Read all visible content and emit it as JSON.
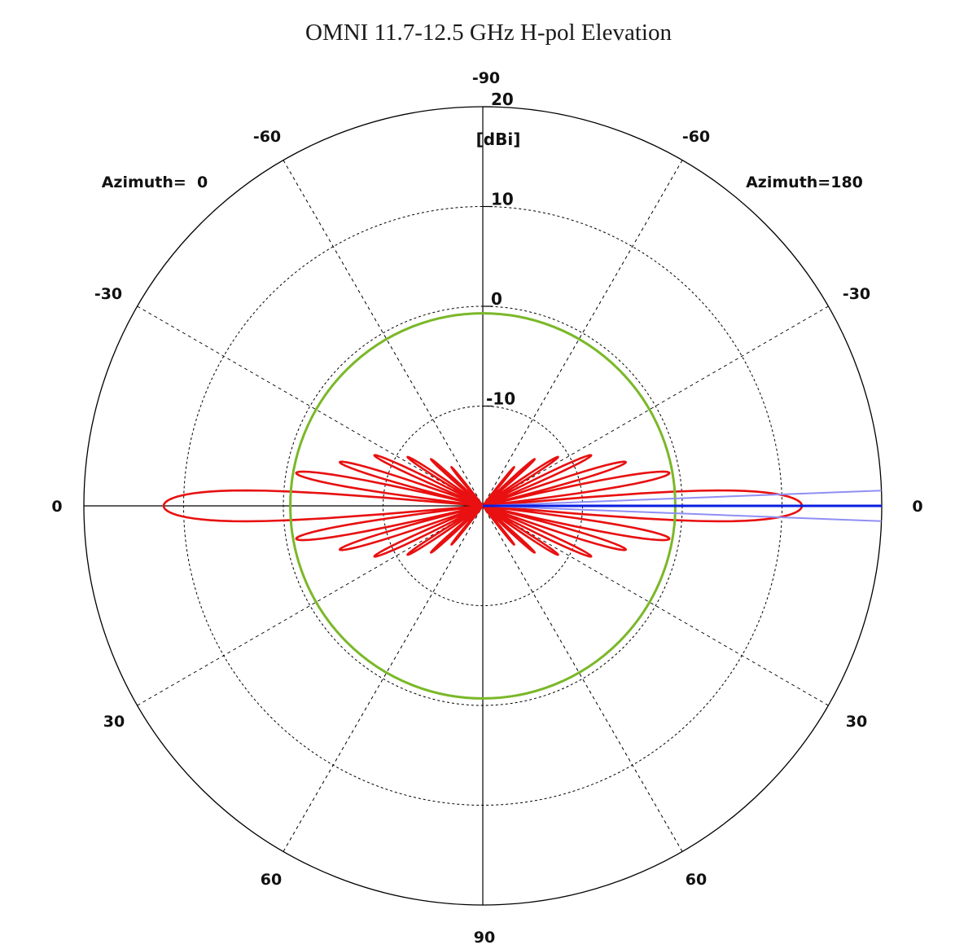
{
  "chart_data": {
    "type": "polar",
    "title": "OMNI 11.7-12.5 GHz H-pol Elevation",
    "unit_label": "[dBi]",
    "radial_ticks": [
      -10,
      0,
      10,
      20
    ],
    "radial_range": [
      -20,
      20
    ],
    "angle_labels": {
      "top": "-90",
      "bottom": "90",
      "left": "0",
      "right": "0",
      "upper_left": "-60",
      "upper_right": "-60",
      "mid_upper_left": "-30",
      "mid_upper_right": "-30",
      "lower_left_30": "30",
      "lower_right_30": "30",
      "lower_left_60": "60",
      "lower_right_60": "60"
    },
    "side_labels": {
      "left": "Azimuth=  0",
      "right": "Azimuth=180"
    },
    "series": [
      {
        "color": "#e81010",
        "description_lobes_dbi": {
          "main_lobe_peak": 12,
          "main_lobe_half_width_deg": 5,
          "side_lobes": [
            {
              "elev_deg": 10,
              "gain_dbi": -1
            },
            {
              "elev_deg": 17,
              "gain_dbi": -5
            },
            {
              "elev_deg": 25,
              "gain_dbi": -8
            },
            {
              "elev_deg": 33,
              "gain_dbi": -11
            },
            {
              "elev_deg": 42,
              "gain_dbi": -13
            },
            {
              "elev_deg": 51,
              "gain_dbi": -15
            }
          ]
        }
      },
      {
        "color": "#7ab828",
        "constant_gain_dbi": -0.7
      },
      {
        "color": "#0a1ee0",
        "elevation_deg": 0,
        "spread_deg": 2.2,
        "spread_color": "#8f8ff5"
      }
    ]
  },
  "colors": {
    "red_pattern": "#e81010",
    "green_circle": "#7ab828",
    "blue_line": "#0a1ee0",
    "blue_spread": "#8f8ff5"
  }
}
